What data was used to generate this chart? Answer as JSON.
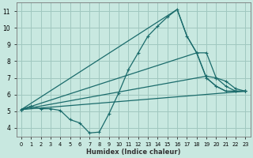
{
  "xlabel": "Humidex (Indice chaleur)",
  "ylabel": "",
  "background_color": "#c8e8e0",
  "grid_color": "#a0c8c0",
  "line_color": "#1a6b6b",
  "xlim": [
    -0.5,
    23.5
  ],
  "ylim": [
    3.5,
    11.5
  ],
  "xticks": [
    0,
    1,
    2,
    3,
    4,
    5,
    6,
    7,
    8,
    9,
    10,
    11,
    12,
    13,
    14,
    15,
    16,
    17,
    18,
    19,
    20,
    21,
    22,
    23
  ],
  "yticks": [
    4,
    5,
    6,
    7,
    8,
    9,
    10,
    11
  ],
  "lines": [
    {
      "x": [
        0,
        1,
        2,
        3,
        4,
        5,
        6,
        7,
        8,
        9,
        10,
        11,
        12,
        13,
        14,
        15,
        16,
        17,
        18,
        19,
        20,
        21,
        22,
        23
      ],
      "y": [
        5.1,
        5.3,
        5.15,
        5.15,
        5.05,
        4.5,
        4.3,
        3.7,
        3.75,
        4.85,
        6.1,
        7.5,
        8.5,
        9.5,
        10.1,
        10.65,
        11.1,
        9.5,
        8.5,
        7.0,
        6.5,
        6.2,
        6.2,
        6.2
      ],
      "with_markers": true
    },
    {
      "x": [
        0,
        23
      ],
      "y": [
        5.1,
        6.2
      ],
      "with_markers": true
    },
    {
      "x": [
        0,
        19,
        20,
        21,
        22,
        23
      ],
      "y": [
        5.1,
        7.1,
        7.0,
        6.8,
        6.35,
        6.2
      ],
      "with_markers": true
    },
    {
      "x": [
        0,
        18,
        19,
        20,
        21,
        22,
        23
      ],
      "y": [
        5.1,
        8.5,
        8.5,
        7.0,
        6.5,
        6.2,
        6.2
      ],
      "with_markers": true
    },
    {
      "x": [
        0,
        16,
        17,
        18,
        19,
        20,
        21,
        22,
        23
      ],
      "y": [
        5.1,
        11.1,
        9.5,
        8.5,
        7.0,
        6.5,
        6.2,
        6.2,
        6.2
      ],
      "with_markers": false
    }
  ]
}
